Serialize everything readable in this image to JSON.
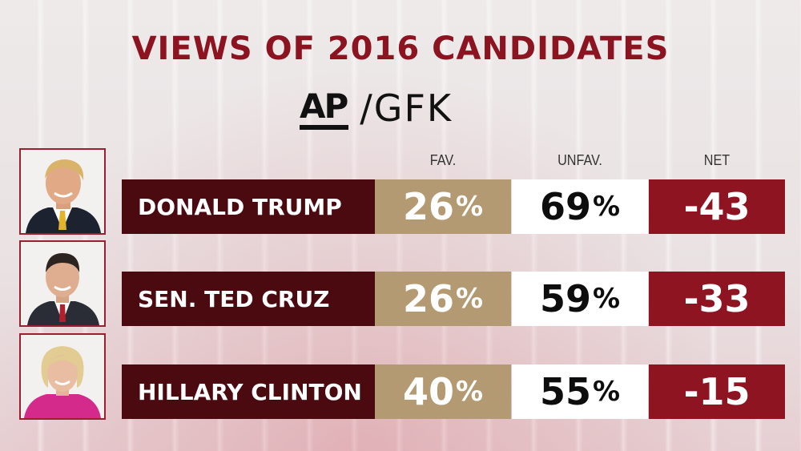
{
  "title": "VIEWS OF 2016 CANDIDATES",
  "brand": {
    "ap": "AP",
    "gfk": "/GFK"
  },
  "columns": {
    "fav": "FAV.",
    "unfav": "UNFAV.",
    "net": "NET"
  },
  "colors": {
    "title": "#8c1320",
    "name_bg": "#4a0a10",
    "fav_bg": "#b49a72",
    "unfav_bg": "#ffffff",
    "net_bg": "#8e1422"
  },
  "rows": [
    {
      "name": "DONALD TRUMP",
      "fav": "26",
      "unfav": "69",
      "net": "-43",
      "pct": "%",
      "photo_icon": "trump-photo"
    },
    {
      "name": "SEN. TED CRUZ",
      "fav": "26",
      "unfav": "59",
      "net": "-33",
      "pct": "%",
      "photo_icon": "cruz-photo"
    },
    {
      "name": "HILLARY CLINTON",
      "fav": "40",
      "unfav": "55",
      "net": "-15",
      "pct": "%",
      "photo_icon": "clinton-photo"
    }
  ]
}
